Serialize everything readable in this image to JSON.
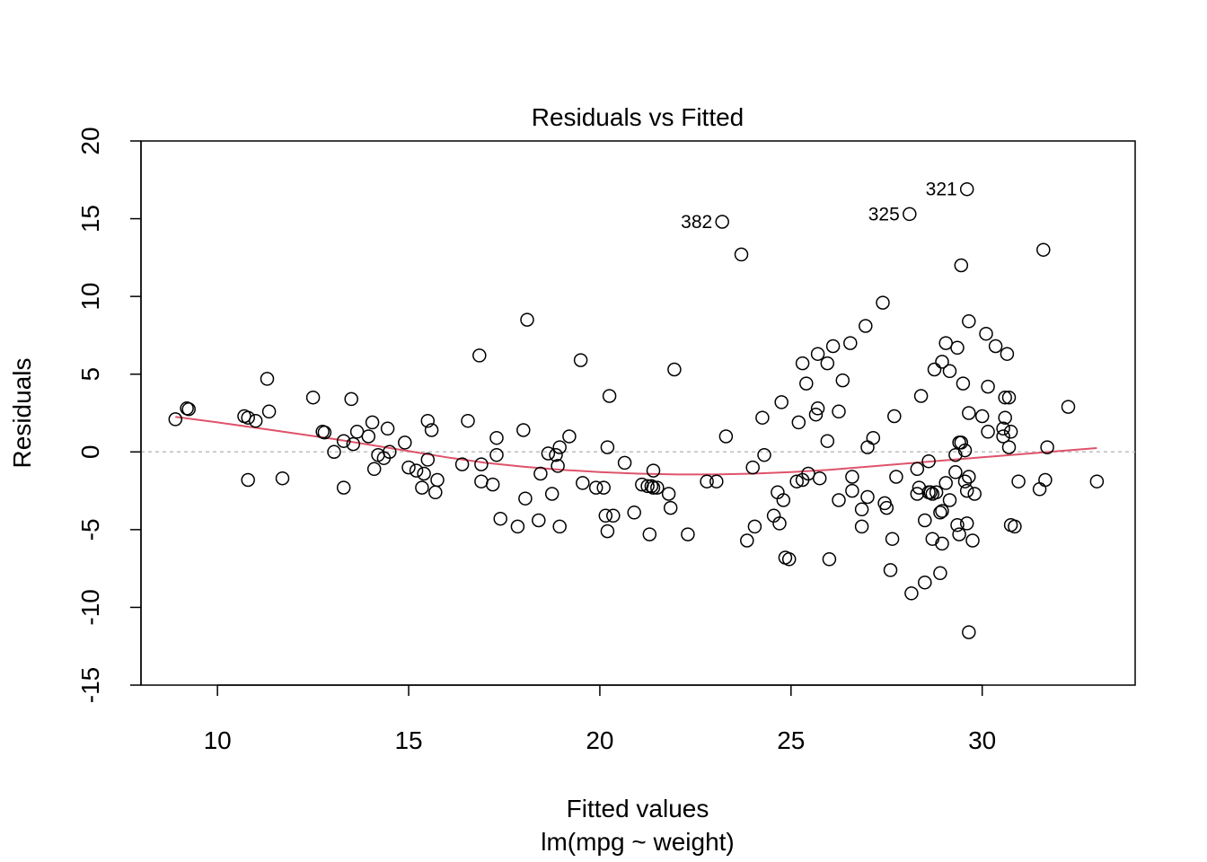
{
  "chart_data": {
    "type": "scatter",
    "title": "Residuals vs Fitted",
    "xlabel": "Fitted values",
    "subtitle": "lm(mpg ~ weight)",
    "ylabel": "Residuals",
    "xlim": [
      8,
      34
    ],
    "ylim": [
      -15,
      20
    ],
    "xticks": [
      10,
      15,
      20,
      25,
      30
    ],
    "yticks": [
      -15,
      -10,
      -5,
      0,
      5,
      10,
      15,
      20
    ],
    "reference_line": 0,
    "colors": {
      "points": "#000000",
      "smooth": "#DF536B",
      "reference": "#BEBEBE"
    },
    "labeled_points": [
      {
        "label": "321",
        "x": 29.6,
        "y": 16.9
      },
      {
        "label": "325",
        "x": 28.1,
        "y": 15.3
      },
      {
        "label": "382",
        "x": 23.2,
        "y": 14.8
      }
    ],
    "points": [
      [
        8.9,
        2.1
      ],
      [
        9.2,
        2.8
      ],
      [
        9.25,
        2.75
      ],
      [
        10.7,
        2.3
      ],
      [
        10.8,
        2.2
      ],
      [
        10.8,
        -1.8
      ],
      [
        11.0,
        2.0
      ],
      [
        11.3,
        4.7
      ],
      [
        11.35,
        2.6
      ],
      [
        11.7,
        -1.7
      ],
      [
        12.5,
        3.5
      ],
      [
        12.75,
        1.3
      ],
      [
        12.8,
        1.25
      ],
      [
        13.05,
        0.0
      ],
      [
        13.3,
        0.7
      ],
      [
        13.3,
        -2.3
      ],
      [
        13.5,
        3.4
      ],
      [
        13.55,
        0.5
      ],
      [
        13.65,
        1.3
      ],
      [
        13.95,
        1.0
      ],
      [
        14.05,
        1.9
      ],
      [
        14.1,
        -1.1
      ],
      [
        14.2,
        -0.2
      ],
      [
        14.35,
        -0.4
      ],
      [
        14.45,
        1.5
      ],
      [
        14.5,
        0.0
      ],
      [
        14.9,
        0.6
      ],
      [
        15.0,
        -1.0
      ],
      [
        15.2,
        -1.2
      ],
      [
        15.35,
        -2.3
      ],
      [
        15.4,
        -1.4
      ],
      [
        15.5,
        2.0
      ],
      [
        15.5,
        -0.5
      ],
      [
        15.6,
        1.4
      ],
      [
        15.7,
        -2.6
      ],
      [
        15.75,
        -1.8
      ],
      [
        16.4,
        -0.8
      ],
      [
        16.55,
        2.0
      ],
      [
        16.85,
        6.2
      ],
      [
        16.9,
        -0.8
      ],
      [
        16.9,
        -1.9
      ],
      [
        17.2,
        -2.1
      ],
      [
        17.3,
        -0.2
      ],
      [
        17.3,
        0.9
      ],
      [
        17.4,
        -4.3
      ],
      [
        17.85,
        -4.8
      ],
      [
        18.0,
        1.4
      ],
      [
        18.05,
        -3.0
      ],
      [
        18.1,
        8.5
      ],
      [
        18.4,
        -4.4
      ],
      [
        18.45,
        -1.4
      ],
      [
        18.65,
        -0.1
      ],
      [
        18.75,
        -2.7
      ],
      [
        18.85,
        -0.2
      ],
      [
        18.9,
        -0.9
      ],
      [
        18.95,
        0.3
      ],
      [
        18.95,
        -4.8
      ],
      [
        19.2,
        1.0
      ],
      [
        19.5,
        5.9
      ],
      [
        19.55,
        -2.0
      ],
      [
        19.9,
        -2.3
      ],
      [
        20.1,
        -2.3
      ],
      [
        20.15,
        -4.1
      ],
      [
        20.2,
        -5.1
      ],
      [
        20.2,
        0.3
      ],
      [
        20.25,
        3.6
      ],
      [
        20.35,
        -4.1
      ],
      [
        20.65,
        -0.7
      ],
      [
        20.9,
        -3.9
      ],
      [
        21.1,
        -2.1
      ],
      [
        21.25,
        -2.2
      ],
      [
        21.3,
        -5.3
      ],
      [
        21.35,
        -2.2
      ],
      [
        21.4,
        -2.3
      ],
      [
        21.4,
        -1.2
      ],
      [
        21.5,
        -2.3
      ],
      [
        21.8,
        -2.7
      ],
      [
        21.85,
        -3.6
      ],
      [
        21.95,
        5.3
      ],
      [
        22.3,
        -5.3
      ],
      [
        22.8,
        -1.9
      ],
      [
        23.05,
        -1.9
      ],
      [
        23.3,
        1.0
      ],
      [
        23.7,
        12.7
      ],
      [
        23.85,
        -5.7
      ],
      [
        24.0,
        -1.0
      ],
      [
        24.05,
        -4.8
      ],
      [
        24.25,
        2.2
      ],
      [
        24.3,
        -0.2
      ],
      [
        24.55,
        -4.1
      ],
      [
        24.65,
        -2.6
      ],
      [
        24.7,
        -4.6
      ],
      [
        24.75,
        3.2
      ],
      [
        24.8,
        -3.1
      ],
      [
        24.85,
        -6.8
      ],
      [
        24.95,
        -6.9
      ],
      [
        25.15,
        -1.9
      ],
      [
        25.2,
        1.9
      ],
      [
        25.3,
        5.7
      ],
      [
        25.3,
        -1.8
      ],
      [
        25.4,
        4.4
      ],
      [
        25.45,
        -1.4
      ],
      [
        25.65,
        2.4
      ],
      [
        25.7,
        2.8
      ],
      [
        25.7,
        6.3
      ],
      [
        25.75,
        -1.7
      ],
      [
        25.95,
        5.7
      ],
      [
        25.95,
        0.7
      ],
      [
        26.0,
        -6.9
      ],
      [
        26.1,
        6.8
      ],
      [
        26.25,
        2.6
      ],
      [
        26.25,
        -3.1
      ],
      [
        26.35,
        4.6
      ],
      [
        26.55,
        7.0
      ],
      [
        26.6,
        -1.6
      ],
      [
        26.6,
        -2.5
      ],
      [
        26.85,
        -4.8
      ],
      [
        26.85,
        -3.7
      ],
      [
        26.95,
        8.1
      ],
      [
        27.0,
        -2.9
      ],
      [
        27.0,
        0.3
      ],
      [
        27.15,
        0.9
      ],
      [
        27.4,
        9.6
      ],
      [
        27.45,
        -3.3
      ],
      [
        27.5,
        -3.6
      ],
      [
        27.6,
        -7.6
      ],
      [
        27.65,
        -5.6
      ],
      [
        27.7,
        2.3
      ],
      [
        27.75,
        -1.6
      ],
      [
        28.15,
        -9.1
      ],
      [
        28.3,
        -2.7
      ],
      [
        28.3,
        -1.1
      ],
      [
        28.35,
        -2.3
      ],
      [
        28.4,
        3.6
      ],
      [
        28.5,
        -4.4
      ],
      [
        28.5,
        -8.4
      ],
      [
        28.6,
        -2.6
      ],
      [
        28.6,
        -0.6
      ],
      [
        28.65,
        -2.6
      ],
      [
        28.7,
        -5.6
      ],
      [
        28.7,
        -2.7
      ],
      [
        28.75,
        5.3
      ],
      [
        28.8,
        -2.6
      ],
      [
        28.9,
        -3.9
      ],
      [
        28.9,
        -7.8
      ],
      [
        28.95,
        -5.9
      ],
      [
        28.95,
        -3.8
      ],
      [
        28.95,
        5.8
      ],
      [
        29.05,
        -2.0
      ],
      [
        29.05,
        7.0
      ],
      [
        29.15,
        5.2
      ],
      [
        29.15,
        -3.1
      ],
      [
        29.3,
        -0.2
      ],
      [
        29.3,
        -1.3
      ],
      [
        29.35,
        -4.7
      ],
      [
        29.35,
        6.7
      ],
      [
        29.4,
        -5.3
      ],
      [
        29.4,
        0.6
      ],
      [
        29.45,
        0.6
      ],
      [
        29.45,
        12.0
      ],
      [
        29.5,
        4.4
      ],
      [
        29.55,
        -1.9
      ],
      [
        29.55,
        0.1
      ],
      [
        29.6,
        -2.5
      ],
      [
        29.6,
        -4.6
      ],
      [
        29.65,
        8.4
      ],
      [
        29.65,
        -1.6
      ],
      [
        29.65,
        2.5
      ],
      [
        29.65,
        -11.6
      ],
      [
        29.75,
        -5.7
      ],
      [
        29.8,
        -2.7
      ],
      [
        30.0,
        2.3
      ],
      [
        30.1,
        7.6
      ],
      [
        30.15,
        4.2
      ],
      [
        30.15,
        1.3
      ],
      [
        30.35,
        6.8
      ],
      [
        30.55,
        1.0
      ],
      [
        30.55,
        1.5
      ],
      [
        30.6,
        2.2
      ],
      [
        30.6,
        3.5
      ],
      [
        30.65,
        6.3
      ],
      [
        30.7,
        3.5
      ],
      [
        30.7,
        0.3
      ],
      [
        30.75,
        1.3
      ],
      [
        30.75,
        -4.7
      ],
      [
        30.85,
        -4.8
      ],
      [
        30.95,
        -1.9
      ],
      [
        31.5,
        -2.4
      ],
      [
        31.6,
        13.0
      ],
      [
        31.65,
        -1.8
      ],
      [
        31.7,
        0.3
      ],
      [
        32.25,
        2.9
      ],
      [
        33.0,
        -1.9
      ],
      [
        29.6,
        16.9
      ],
      [
        28.1,
        15.3
      ],
      [
        23.2,
        14.8
      ]
    ],
    "smooth_curve": [
      [
        8.9,
        2.25
      ],
      [
        10,
        1.9
      ],
      [
        11,
        1.55
      ],
      [
        12,
        1.2
      ],
      [
        13,
        0.85
      ],
      [
        14,
        0.45
      ],
      [
        15,
        0.05
      ],
      [
        16,
        -0.35
      ],
      [
        17,
        -0.7
      ],
      [
        18,
        -0.95
      ],
      [
        19,
        -1.15
      ],
      [
        20,
        -1.3
      ],
      [
        21,
        -1.4
      ],
      [
        22,
        -1.45
      ],
      [
        23,
        -1.45
      ],
      [
        24,
        -1.4
      ],
      [
        25,
        -1.3
      ],
      [
        26,
        -1.15
      ],
      [
        27,
        -0.95
      ],
      [
        28,
        -0.75
      ],
      [
        29,
        -0.55
      ],
      [
        30,
        -0.35
      ],
      [
        31,
        -0.15
      ],
      [
        32,
        0.05
      ],
      [
        33,
        0.25
      ]
    ]
  }
}
